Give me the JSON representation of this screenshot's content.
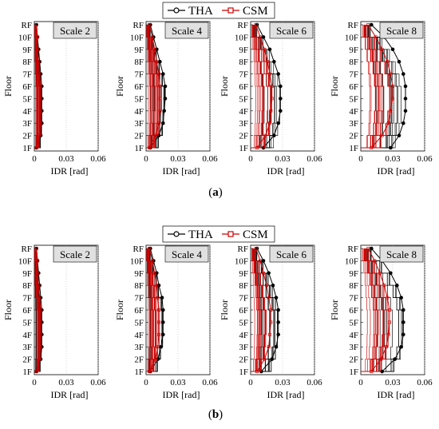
{
  "figure": {
    "legend": [
      {
        "label": "THA",
        "color": "#000000",
        "marker": "circle"
      },
      {
        "label": "CSM",
        "color": "#cc0000",
        "marker": "square"
      }
    ],
    "panel_labels": [
      "(a)",
      "(b)"
    ]
  },
  "chart_data": [
    {
      "type": "line",
      "group": "(a)",
      "title": "Scale 2",
      "xlabel": "IDR [rad]",
      "ylabel": "Floor",
      "xlim": [
        0,
        0.06
      ],
      "xticks": [
        "0",
        "0.03",
        "0.06"
      ],
      "yticks": [
        "1F",
        "2F",
        "3F",
        "4F",
        "5F",
        "6F",
        "7F",
        "8F",
        "9F",
        "10F",
        "RF"
      ],
      "series": [
        {
          "name": "THA",
          "max_envelope": [
            0.002,
            0.006,
            0.007,
            0.007,
            0.007,
            0.007,
            0.006,
            0.005,
            0.004,
            0.003,
            0.002
          ]
        },
        {
          "name": "CSM",
          "max_envelope": [
            0.002,
            0.005,
            0.006,
            0.006,
            0.006,
            0.006,
            0.005,
            0.004,
            0.003,
            0.003,
            0.002
          ]
        }
      ]
    },
    {
      "type": "line",
      "group": "(a)",
      "title": "Scale 4",
      "xlabel": "IDR [rad]",
      "ylabel": "Floor",
      "xlim": [
        0,
        0.06
      ],
      "xticks": [
        "0",
        "0.03",
        "0.06"
      ],
      "yticks": [
        "1F",
        "2F",
        "3F",
        "4F",
        "5F",
        "6F",
        "7F",
        "8F",
        "9F",
        "10F",
        "RF"
      ],
      "series": [
        {
          "name": "THA",
          "max_envelope": [
            0.004,
            0.012,
            0.016,
            0.017,
            0.018,
            0.018,
            0.016,
            0.013,
            0.01,
            0.007,
            0.004
          ]
        },
        {
          "name": "CSM",
          "max_envelope": [
            0.003,
            0.009,
            0.012,
            0.013,
            0.013,
            0.013,
            0.012,
            0.01,
            0.008,
            0.006,
            0.003
          ]
        }
      ]
    },
    {
      "type": "line",
      "group": "(a)",
      "title": "Scale 6",
      "xlabel": "IDR [rad]",
      "ylabel": "Floor",
      "xlim": [
        0,
        0.06
      ],
      "xticks": [
        "0",
        "0.03",
        "0.06"
      ],
      "yticks": [
        "1F",
        "2F",
        "3F",
        "4F",
        "5F",
        "6F",
        "7F",
        "8F",
        "9F",
        "10F",
        "RF"
      ],
      "series": [
        {
          "name": "THA",
          "max_envelope": [
            0.012,
            0.022,
            0.026,
            0.028,
            0.028,
            0.028,
            0.026,
            0.022,
            0.018,
            0.012,
            0.006
          ]
        },
        {
          "name": "CSM",
          "max_envelope": [
            0.006,
            0.014,
            0.018,
            0.019,
            0.02,
            0.02,
            0.018,
            0.016,
            0.013,
            0.009,
            0.005
          ]
        }
      ]
    },
    {
      "type": "line",
      "group": "(a)",
      "title": "Scale 8",
      "xlabel": "IDR [rad]",
      "ylabel": "Floor",
      "xlim": [
        0,
        0.06
      ],
      "xticks": [
        "0",
        "0.03",
        "0.06"
      ],
      "yticks": [
        "1F",
        "2F",
        "3F",
        "4F",
        "5F",
        "6F",
        "7F",
        "8F",
        "9F",
        "10F",
        "RF"
      ],
      "series": [
        {
          "name": "THA",
          "max_envelope": [
            0.028,
            0.036,
            0.04,
            0.042,
            0.042,
            0.042,
            0.04,
            0.036,
            0.03,
            0.022,
            0.01
          ]
        },
        {
          "name": "CSM",
          "max_envelope": [
            0.01,
            0.02,
            0.026,
            0.028,
            0.03,
            0.03,
            0.028,
            0.025,
            0.02,
            0.014,
            0.007
          ]
        }
      ]
    },
    {
      "type": "line",
      "group": "(b)",
      "title": "Scale 2",
      "xlabel": "IDR [rad]",
      "ylabel": "Floor",
      "xlim": [
        0,
        0.06
      ],
      "xticks": [
        "0",
        "0.03",
        "0.06"
      ],
      "yticks": [
        "1F",
        "2F",
        "3F",
        "4F",
        "5F",
        "6F",
        "7F",
        "8F",
        "9F",
        "10F",
        "RF"
      ],
      "series": [
        {
          "name": "THA",
          "max_envelope": [
            0.002,
            0.006,
            0.007,
            0.007,
            0.007,
            0.007,
            0.006,
            0.005,
            0.004,
            0.003,
            0.002
          ]
        },
        {
          "name": "CSM",
          "max_envelope": [
            0.002,
            0.005,
            0.006,
            0.006,
            0.006,
            0.006,
            0.005,
            0.004,
            0.003,
            0.003,
            0.002
          ]
        }
      ]
    },
    {
      "type": "line",
      "group": "(b)",
      "title": "Scale 4",
      "xlabel": "IDR [rad]",
      "ylabel": "Floor",
      "xlim": [
        0,
        0.06
      ],
      "xticks": [
        "0",
        "0.03",
        "0.06"
      ],
      "yticks": [
        "1F",
        "2F",
        "3F",
        "4F",
        "5F",
        "6F",
        "7F",
        "8F",
        "9F",
        "10F",
        "RF"
      ],
      "series": [
        {
          "name": "THA",
          "max_envelope": [
            0.004,
            0.011,
            0.014,
            0.016,
            0.016,
            0.016,
            0.015,
            0.012,
            0.01,
            0.007,
            0.004
          ]
        },
        {
          "name": "CSM",
          "max_envelope": [
            0.003,
            0.009,
            0.011,
            0.012,
            0.012,
            0.012,
            0.011,
            0.01,
            0.008,
            0.006,
            0.003
          ]
        }
      ]
    },
    {
      "type": "line",
      "group": "(b)",
      "title": "Scale 6",
      "xlabel": "IDR [rad]",
      "ylabel": "Floor",
      "xlim": [
        0,
        0.06
      ],
      "xticks": [
        "0",
        "0.03",
        "0.06"
      ],
      "yticks": [
        "1F",
        "2F",
        "3F",
        "4F",
        "5F",
        "6F",
        "7F",
        "8F",
        "9F",
        "10F",
        "RF"
      ],
      "series": [
        {
          "name": "THA",
          "max_envelope": [
            0.01,
            0.02,
            0.024,
            0.026,
            0.026,
            0.026,
            0.024,
            0.021,
            0.017,
            0.012,
            0.006
          ]
        },
        {
          "name": "CSM",
          "max_envelope": [
            0.006,
            0.013,
            0.017,
            0.018,
            0.019,
            0.019,
            0.017,
            0.015,
            0.012,
            0.009,
            0.005
          ]
        }
      ]
    },
    {
      "type": "line",
      "group": "(b)",
      "title": "Scale 8",
      "xlabel": "IDR [rad]",
      "ylabel": "Floor",
      "xlim": [
        0,
        0.06
      ],
      "xticks": [
        "0",
        "0.03",
        "0.06"
      ],
      "yticks": [
        "1F",
        "2F",
        "3F",
        "4F",
        "5F",
        "6F",
        "7F",
        "8F",
        "9F",
        "10F",
        "RF"
      ],
      "series": [
        {
          "name": "THA",
          "max_envelope": [
            0.02,
            0.032,
            0.038,
            0.04,
            0.04,
            0.04,
            0.038,
            0.034,
            0.028,
            0.02,
            0.01
          ]
        },
        {
          "name": "CSM",
          "max_envelope": [
            0.01,
            0.019,
            0.024,
            0.026,
            0.027,
            0.027,
            0.025,
            0.022,
            0.018,
            0.013,
            0.007
          ]
        }
      ]
    }
  ]
}
